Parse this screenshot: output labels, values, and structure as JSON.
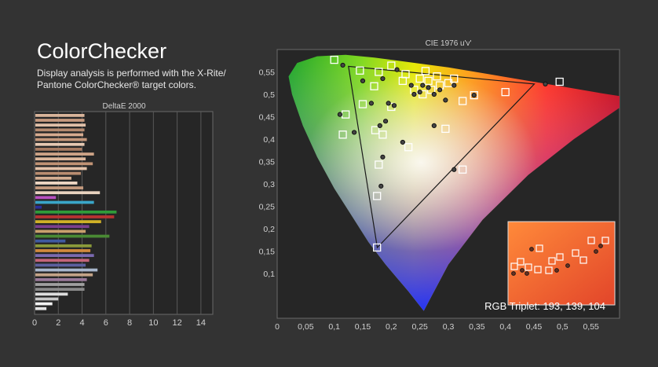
{
  "header": {
    "title": "ColorChecker",
    "subtitle": "Display analysis is performed with the X-Rite/ Pantone ColorChecker® target colors."
  },
  "colors": {
    "background": "#333333",
    "panel": "#262626",
    "grid": "#5a5a5a",
    "tick_text": "#d0d0d0"
  },
  "chart_data": [
    {
      "type": "bar",
      "orientation": "horizontal",
      "title": "DeltaE 2000",
      "xlim": [
        0,
        15
      ],
      "xticks": [
        "0",
        "2",
        "4",
        "6",
        "8",
        "10",
        "12",
        "14"
      ],
      "bars": [
        {
          "value": 4.2,
          "color": "#d9b49a"
        },
        {
          "value": 4.2,
          "color": "#c79a7f"
        },
        {
          "value": 4.3,
          "color": "#e0c0a8"
        },
        {
          "value": 4.2,
          "color": "#b58b70"
        },
        {
          "value": 4.1,
          "color": "#d6ab8f"
        },
        {
          "value": 4.4,
          "color": "#c4977b"
        },
        {
          "value": 4.2,
          "color": "#e6c8b2"
        },
        {
          "value": 4.0,
          "color": "#a77b62"
        },
        {
          "value": 5.0,
          "color": "#cfa487"
        },
        {
          "value": 4.3,
          "color": "#dcb79c"
        },
        {
          "value": 4.9,
          "color": "#bf9274"
        },
        {
          "value": 4.4,
          "color": "#e3c2a9"
        },
        {
          "value": 3.9,
          "color": "#b88c70"
        },
        {
          "value": 3.1,
          "color": "#d4ae92"
        },
        {
          "value": 3.6,
          "color": "#efd7c4"
        },
        {
          "value": 4.1,
          "color": "#c59a7e"
        },
        {
          "value": 5.5,
          "color": "#e8d2bf"
        },
        {
          "value": 1.8,
          "color": "#b84fc0"
        },
        {
          "value": 5.0,
          "color": "#3aa6c8"
        },
        {
          "value": 0.6,
          "color": "#2a2f9a"
        },
        {
          "value": 6.9,
          "color": "#2f9b3a"
        },
        {
          "value": 6.7,
          "color": "#b83232"
        },
        {
          "value": 5.6,
          "color": "#d1b227"
        },
        {
          "value": 4.6,
          "color": "#7b3f8e"
        },
        {
          "value": 4.3,
          "color": "#c9a06d"
        },
        {
          "value": 6.3,
          "color": "#4a8a34"
        },
        {
          "value": 2.6,
          "color": "#3f5aa0"
        },
        {
          "value": 4.8,
          "color": "#8a9a3a"
        },
        {
          "value": 4.7,
          "color": "#d18a3c"
        },
        {
          "value": 5.0,
          "color": "#7a6ab0"
        },
        {
          "value": 4.6,
          "color": "#c4657a"
        },
        {
          "value": 4.3,
          "color": "#5c5f9e"
        },
        {
          "value": 5.3,
          "color": "#a8b7cc"
        },
        {
          "value": 4.9,
          "color": "#c4a488"
        },
        {
          "value": 4.4,
          "color": "#9a7a9a"
        },
        {
          "value": 4.2,
          "color": "#a0a0a0"
        },
        {
          "value": 4.2,
          "color": "#8a8a8a"
        },
        {
          "value": 2.8,
          "color": "#dddddd"
        },
        {
          "value": 2.0,
          "color": "#c8c8c8"
        },
        {
          "value": 1.5,
          "color": "#f2f2f2"
        },
        {
          "value": 1.0,
          "color": "#e4e4e4"
        }
      ]
    },
    {
      "type": "scatter",
      "title": "CIE 1976 u'v'",
      "xlim": [
        0,
        0.6
      ],
      "ylim": [
        0,
        0.6
      ],
      "xticks": [
        "0",
        "0,05",
        "0,1",
        "0,15",
        "0,2",
        "0,25",
        "0,3",
        "0,35",
        "0,4",
        "0,45",
        "0,5",
        "0,55"
      ],
      "yticks": [
        "0,1",
        "0,15",
        "0,2",
        "0,25",
        "0,3",
        "0,35",
        "0,4",
        "0,45",
        "0,5",
        "0,55"
      ],
      "annotation": "RGB Triplet: 193, 139, 104",
      "gamut_triangle": [
        [
          0.4507,
          0.5229
        ],
        [
          0.125,
          0.5625
        ],
        [
          0.1754,
          0.1579
        ]
      ],
      "targets": [
        [
          0.1,
          0.577
        ],
        [
          0.145,
          0.553
        ],
        [
          0.2,
          0.564
        ],
        [
          0.225,
          0.545
        ],
        [
          0.265,
          0.53
        ],
        [
          0.26,
          0.552
        ],
        [
          0.28,
          0.54
        ],
        [
          0.3,
          0.525
        ],
        [
          0.31,
          0.535
        ],
        [
          0.325,
          0.485
        ],
        [
          0.345,
          0.498
        ],
        [
          0.4,
          0.505
        ],
        [
          0.495,
          0.528
        ],
        [
          0.17,
          0.518
        ],
        [
          0.178,
          0.55
        ],
        [
          0.15,
          0.478
        ],
        [
          0.12,
          0.455
        ],
        [
          0.2,
          0.472
        ],
        [
          0.172,
          0.42
        ],
        [
          0.115,
          0.41
        ],
        [
          0.185,
          0.41
        ],
        [
          0.23,
          0.382
        ],
        [
          0.295,
          0.423
        ],
        [
          0.325,
          0.332
        ],
        [
          0.178,
          0.343
        ],
        [
          0.175,
          0.273
        ],
        [
          0.175,
          0.158
        ],
        [
          0.24,
          0.51
        ],
        [
          0.25,
          0.535
        ],
        [
          0.27,
          0.51
        ],
        [
          0.255,
          0.5
        ],
        [
          0.285,
          0.52
        ],
        [
          0.22,
          0.53
        ]
      ],
      "measured": [
        [
          0.115,
          0.565
        ],
        [
          0.15,
          0.53
        ],
        [
          0.185,
          0.535
        ],
        [
          0.21,
          0.555
        ],
        [
          0.235,
          0.52
        ],
        [
          0.25,
          0.505
        ],
        [
          0.265,
          0.515
        ],
        [
          0.285,
          0.51
        ],
        [
          0.295,
          0.487
        ],
        [
          0.31,
          0.52
        ],
        [
          0.345,
          0.498
        ],
        [
          0.47,
          0.523
        ],
        [
          0.165,
          0.48
        ],
        [
          0.11,
          0.455
        ],
        [
          0.195,
          0.48
        ],
        [
          0.18,
          0.43
        ],
        [
          0.135,
          0.415
        ],
        [
          0.19,
          0.44
        ],
        [
          0.22,
          0.393
        ],
        [
          0.275,
          0.43
        ],
        [
          0.31,
          0.332
        ],
        [
          0.185,
          0.36
        ],
        [
          0.182,
          0.295
        ],
        [
          0.205,
          0.475
        ],
        [
          0.255,
          0.52
        ],
        [
          0.24,
          0.5
        ],
        [
          0.275,
          0.5
        ]
      ],
      "inset": {
        "description_color": "#f0683a"
      }
    }
  ]
}
